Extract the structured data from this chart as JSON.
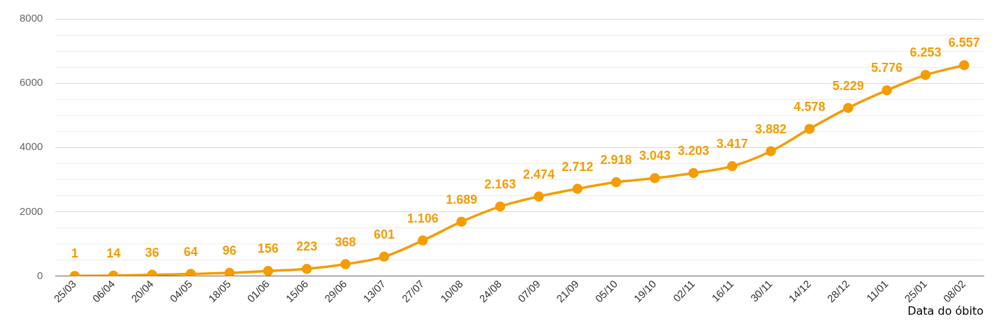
{
  "chart_data": {
    "type": "line",
    "xlabel": "Data do óbito",
    "categories": [
      "25/03",
      "06/04",
      "20/04",
      "04/05",
      "18/05",
      "01/06",
      "15/06",
      "29/06",
      "13/07",
      "27/07",
      "10/08",
      "24/08",
      "07/09",
      "21/09",
      "05/10",
      "19/10",
      "02/11",
      "16/11",
      "30/11",
      "14/12",
      "28/12",
      "11/01",
      "25/01",
      "08/02"
    ],
    "series": [
      {
        "color": "#f59c00",
        "values": [
          1,
          14,
          36,
          64,
          96,
          156,
          223,
          368,
          601,
          1106,
          1689,
          2163,
          2474,
          2712,
          2918,
          3043,
          3203,
          3417,
          3882,
          4578,
          5229,
          5776,
          6253,
          6557
        ],
        "value_labels": [
          "1",
          "14",
          "36",
          "64",
          "96",
          "156",
          "223",
          "368",
          "601",
          "1.106",
          "1.689",
          "2.163",
          "2.474",
          "2.712",
          "2.918",
          "3.043",
          "3.203",
          "3.417",
          "3.882",
          "4.578",
          "5.229",
          "5.776",
          "6.253",
          "6.557"
        ]
      }
    ],
    "ylim": [
      0,
      8000
    ],
    "yticks": [
      0,
      {
        "value": 500,
        "label": null
      },
      {
        "value": 1000,
        "label": null
      },
      {
        "value": 1500,
        "label": null
      },
      2000,
      {
        "value": 2500,
        "label": null
      },
      {
        "value": 3000,
        "label": null
      },
      {
        "value": 3500,
        "label": null
      },
      4000,
      {
        "value": 4500,
        "label": null
      },
      {
        "value": 5000,
        "label": null
      },
      {
        "value": 5500,
        "label": null
      },
      6000,
      {
        "value": 6500,
        "label": null
      },
      {
        "value": 7000,
        "label": null
      },
      {
        "value": 7500,
        "label": null
      },
      8000
    ],
    "grid": "y",
    "marker": "circle",
    "line_style": "solid",
    "legend": false
  }
}
